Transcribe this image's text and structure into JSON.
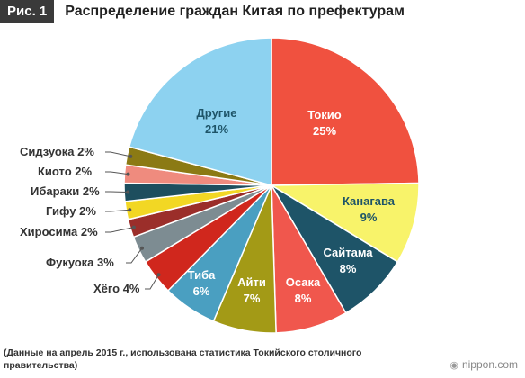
{
  "header": {
    "badge": "Рис. 1",
    "title": "Распределение граждан Китая по префектурам"
  },
  "chart_data": {
    "type": "pie",
    "title": "Распределение граждан Китая по префектурам",
    "start_angle_deg": 0,
    "direction": "clockwise",
    "slices": [
      {
        "label": "Токио",
        "percent_label": "25%",
        "value": 25,
        "color": "#f0513f"
      },
      {
        "label": "Канагава",
        "percent_label": "9%",
        "value": 9,
        "color": "#f8f36a"
      },
      {
        "label": "Сайтама",
        "percent_label": "8%",
        "value": 8,
        "color": "#1e5468"
      },
      {
        "label": "Осака",
        "percent_label": "8%",
        "value": 8,
        "color": "#f0574d"
      },
      {
        "label": "Айти",
        "percent_label": "7%",
        "value": 7,
        "color": "#a39a16"
      },
      {
        "label": "Тиба",
        "percent_label": "6%",
        "value": 6,
        "color": "#4a9fc1"
      },
      {
        "label": "Хёго",
        "percent_label": "4%",
        "value": 4,
        "color": "#d0271d"
      },
      {
        "label": "Фукуока",
        "percent_label": "3%",
        "value": 3,
        "color": "#7d8c92"
      },
      {
        "label": "Хиросима",
        "percent_label": "2%",
        "value": 2,
        "color": "#9b2e2a"
      },
      {
        "label": "Гифу",
        "percent_label": "2%",
        "value": 2,
        "color": "#f2d724"
      },
      {
        "label": "Ибараки",
        "percent_label": "2%",
        "value": 2,
        "color": "#1d4e5e"
      },
      {
        "label": "Киото",
        "percent_label": "2%",
        "value": 2,
        "color": "#ef8b7e"
      },
      {
        "label": "Сидзуока",
        "percent_label": "2%",
        "value": 2,
        "color": "#8b7a14"
      },
      {
        "label": "Другие",
        "percent_label": "21%",
        "value": 21,
        "color": "#8dd2f0"
      }
    ]
  },
  "footer": {
    "note": "(Данные на апрель 2015 г., использована статистика Токийского столичного правительства)",
    "credit": "nippon.com"
  }
}
